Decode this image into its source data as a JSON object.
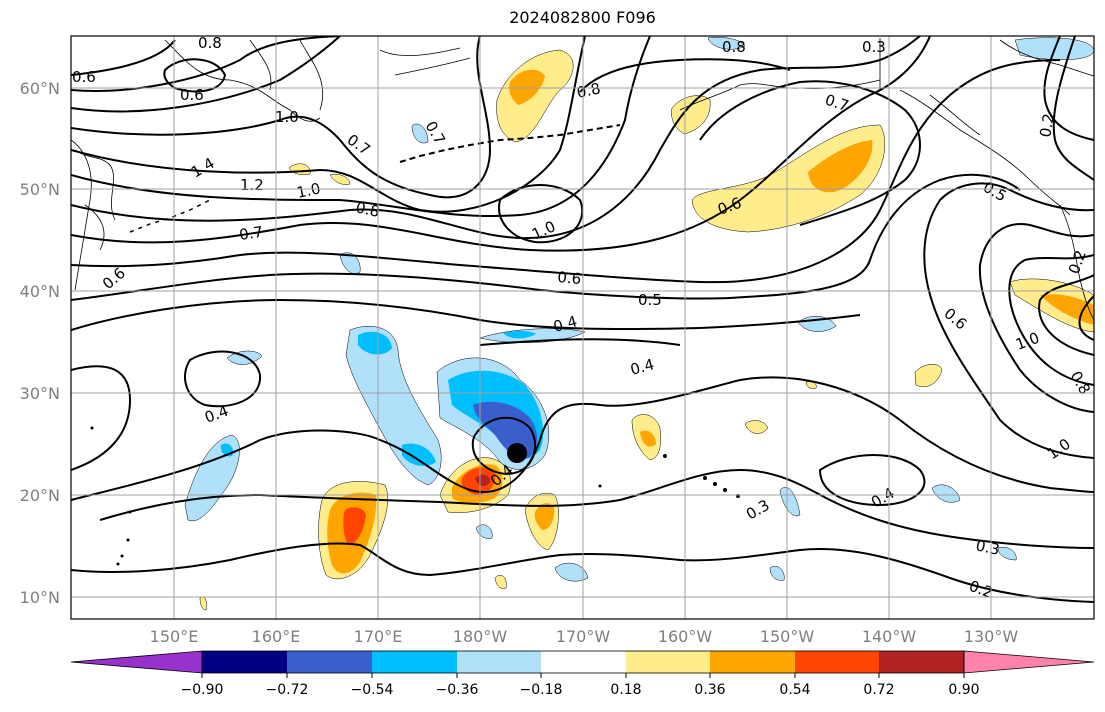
{
  "title": "2024082800 F096",
  "map": {
    "lat_ticks": [
      "10°N",
      "20°N",
      "30°N",
      "40°N",
      "50°N",
      "60°N"
    ],
    "lon_ticks": [
      "150°E",
      "160°E",
      "170°E",
      "180°W",
      "170°W",
      "160°W",
      "150°W",
      "140°W",
      "130°W"
    ],
    "contour_labels": [
      "0.8",
      "0.7",
      "0.6",
      "1.0",
      "1.4",
      "1.2",
      "1.0",
      "0.7",
      "0.6",
      "0.8",
      "0.7",
      "0.6",
      "1.0",
      "0.8",
      "0.8",
      "0.7",
      "0.6",
      "0.5",
      "0.2",
      "0.6",
      "0.5",
      "0.6",
      "0.4",
      "0.4",
      "0.4",
      "0.4",
      "0.3",
      "0.3",
      "0.2",
      "0.4",
      "1.0",
      "1.0",
      "0.8",
      "0.2",
      "0.3"
    ],
    "center_marker": "storm-center-dot"
  },
  "colorbar": {
    "ticks": [
      "−0.90",
      "−0.72",
      "−0.54",
      "−0.36",
      "−0.18",
      "0.18",
      "0.36",
      "0.54",
      "0.72",
      "0.90"
    ],
    "colors": [
      "#9932cc",
      "#000080",
      "#3a5fcd",
      "#00bfff",
      "#b0e0fa",
      "#ffffff",
      "#ffec8b",
      "#ffa500",
      "#ff4500",
      "#b22222",
      "#ff82ab"
    ]
  }
}
